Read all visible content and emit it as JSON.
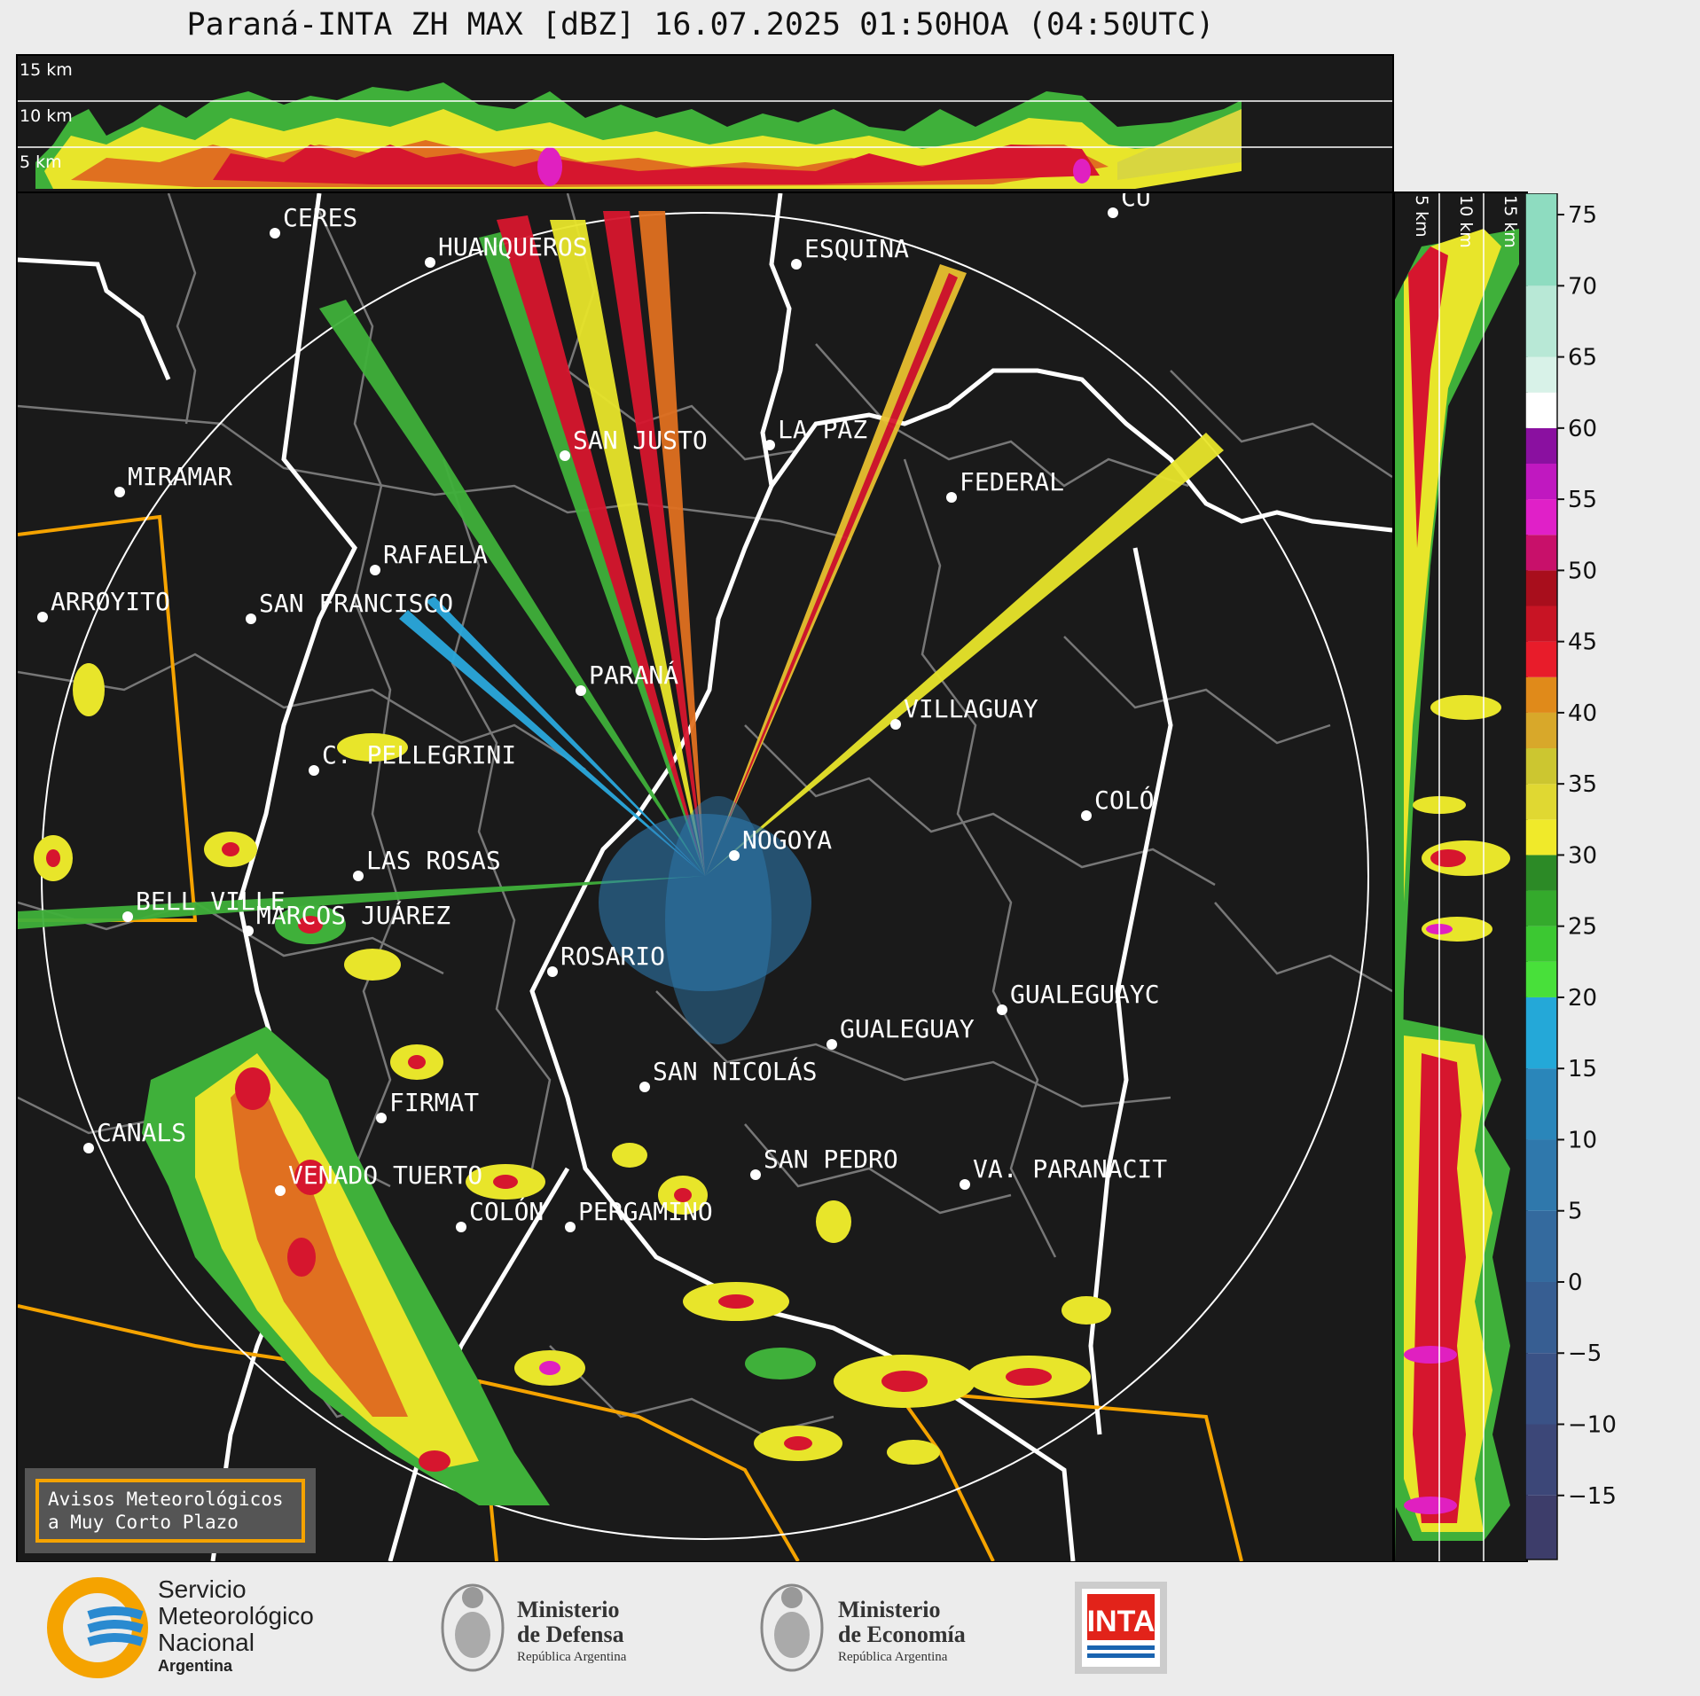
{
  "header": {
    "title": "Paraná-INTA ZH MAX [dBZ] 16.07.2025 01:50HOA (04:50UTC)"
  },
  "top_panel": {
    "height_labels": [
      "15 km",
      "10 km",
      "5 km"
    ]
  },
  "side_panel": {
    "height_labels": [
      "5 km",
      "10 km",
      "15 km"
    ]
  },
  "colorbar": {
    "unit": "dBZ",
    "ticks": [
      75,
      70,
      65,
      60,
      55,
      50,
      45,
      40,
      35,
      30,
      25,
      20,
      15,
      10,
      5,
      0,
      -5,
      -10,
      -15
    ],
    "tick_labels": [
      "75",
      "70",
      "65",
      "60",
      "55",
      "50",
      "45",
      "40",
      "35",
      "30",
      "25",
      "20",
      "15",
      "10",
      "5",
      "0",
      "−5",
      "−10",
      "−15"
    ]
  },
  "map": {
    "radar": "PARANÁ",
    "cities": [
      {
        "name": "CERES"
      },
      {
        "name": "HUANQUEROS"
      },
      {
        "name": "ESQUINA"
      },
      {
        "name": "CU"
      },
      {
        "name": "SAN JUSTO"
      },
      {
        "name": "LA PAZ"
      },
      {
        "name": "FEDERAL"
      },
      {
        "name": "MIRAMAR"
      },
      {
        "name": "RAFAELA"
      },
      {
        "name": "ARROYITO"
      },
      {
        "name": "SAN FRANCISCO"
      },
      {
        "name": "PARANÁ"
      },
      {
        "name": "VILLAGUAY"
      },
      {
        "name": "C. PELLEGRINI"
      },
      {
        "name": "COLÓ"
      },
      {
        "name": "NOGOYA"
      },
      {
        "name": "LAS ROSAS"
      },
      {
        "name": "BELL VILLE"
      },
      {
        "name": "MARCOS JUÁREZ"
      },
      {
        "name": "ROSARIO"
      },
      {
        "name": "GUALEGUAYC"
      },
      {
        "name": "GUALEGUAY"
      },
      {
        "name": "SAN NICOLÁS"
      },
      {
        "name": "FIRMAT"
      },
      {
        "name": "CANALS"
      },
      {
        "name": "SAN PEDRO"
      },
      {
        "name": "VENADO TUERTO"
      },
      {
        "name": "VA. PARANACIT"
      },
      {
        "name": "COLÓN"
      },
      {
        "name": "PERGAMINO"
      }
    ]
  },
  "warning_box": {
    "line1": "Avisos Meteorológicos",
    "line2": "a Muy Corto Plazo"
  },
  "footer": {
    "smn": {
      "line1": "Servicio",
      "line2": "Meteorológico",
      "line3": "Nacional",
      "line4": "Argentina"
    },
    "defensa": {
      "line1": "Ministerio",
      "line2": "de Defensa",
      "line3": "República Argentina"
    },
    "economia": {
      "line1": "Ministerio",
      "line2": "de Economía",
      "line3": "República Argentina"
    },
    "inta": {
      "text": "INTA"
    }
  },
  "colors": {
    "background": "#1a1a1a",
    "border_province": "#ffffff",
    "border_department": "#777777",
    "warning_polygon": "#f5a300"
  }
}
